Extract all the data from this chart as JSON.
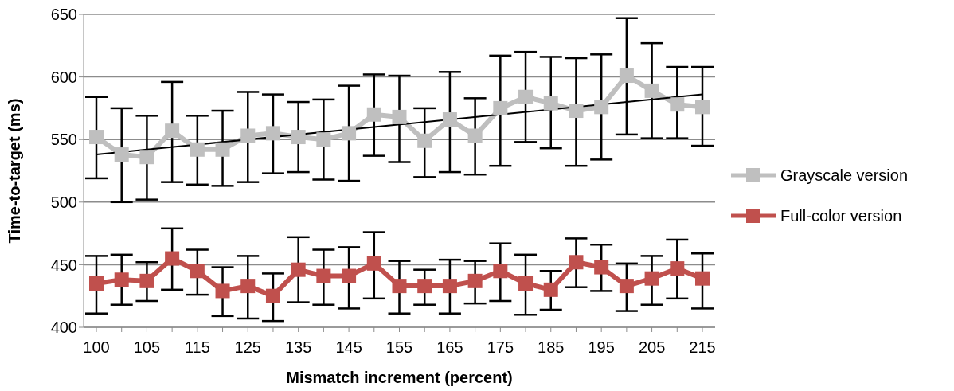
{
  "chart_data": {
    "type": "line",
    "xlabel": "Mismatch increment (percent)",
    "ylabel": "Time-to-target (ms)",
    "categories": [
      "100",
      null,
      "105",
      null,
      "115",
      null,
      "125",
      null,
      "135",
      null,
      "145",
      null,
      "155",
      null,
      "165",
      null,
      "175",
      null,
      "185",
      null,
      "195",
      null,
      "205",
      null,
      "215"
    ],
    "ylim": [
      400,
      650
    ],
    "yticks": [
      400,
      450,
      500,
      550,
      600,
      650
    ],
    "grid": "y",
    "legend": "right",
    "marker": "square",
    "line_style": "solid",
    "series": [
      {
        "name": "Grayscale version",
        "color": "#bfbfbf",
        "values": [
          552,
          538,
          536,
          557,
          542,
          542,
          553,
          555,
          552,
          550,
          555,
          570,
          568,
          549,
          566,
          553,
          575,
          584,
          579,
          573,
          576,
          601,
          589,
          578,
          576
        ],
        "errors": [
          [
            519,
            584
          ],
          [
            500,
            575
          ],
          [
            502,
            569
          ],
          [
            516,
            596
          ],
          [
            514,
            569
          ],
          [
            513,
            573
          ],
          [
            516,
            588
          ],
          [
            523,
            586
          ],
          [
            524,
            580
          ],
          [
            518,
            582
          ],
          [
            517,
            593
          ],
          [
            537,
            602
          ],
          [
            532,
            601
          ],
          [
            520,
            575
          ],
          [
            524,
            604
          ],
          [
            522,
            583
          ],
          [
            529,
            617
          ],
          [
            548,
            620
          ],
          [
            543,
            616
          ],
          [
            529,
            615
          ],
          [
            534,
            618
          ],
          [
            554,
            647
          ],
          [
            551,
            627
          ],
          [
            551,
            608
          ],
          [
            545,
            608
          ]
        ]
      },
      {
        "name": "Full-color version",
        "color": "#c0504d",
        "values": [
          435,
          438,
          437,
          455,
          445,
          429,
          433,
          425,
          446,
          441,
          441,
          451,
          433,
          433,
          433,
          437,
          445,
          435,
          430,
          452,
          448,
          433,
          439,
          447,
          439
        ],
        "errors": [
          [
            411,
            457
          ],
          [
            418,
            458
          ],
          [
            421,
            452
          ],
          [
            430,
            479
          ],
          [
            426,
            462
          ],
          [
            409,
            448
          ],
          [
            407,
            457
          ],
          [
            405,
            443
          ],
          [
            420,
            472
          ],
          [
            418,
            462
          ],
          [
            415,
            464
          ],
          [
            423,
            476
          ],
          [
            411,
            453
          ],
          [
            418,
            446
          ],
          [
            411,
            454
          ],
          [
            419,
            453
          ],
          [
            421,
            467
          ],
          [
            410,
            458
          ],
          [
            414,
            445
          ],
          [
            432,
            471
          ],
          [
            429,
            466
          ],
          [
            413,
            451
          ],
          [
            418,
            457
          ],
          [
            423,
            470
          ],
          [
            415,
            459
          ]
        ]
      },
      {
        "type": "line",
        "color": "#000000",
        "marker": "none",
        "values": [
          538,
          null,
          null,
          null,
          null,
          null,
          null,
          null,
          null,
          null,
          null,
          null,
          null,
          null,
          null,
          null,
          null,
          null,
          null,
          null,
          null,
          null,
          null,
          null,
          586
        ]
      }
    ]
  }
}
